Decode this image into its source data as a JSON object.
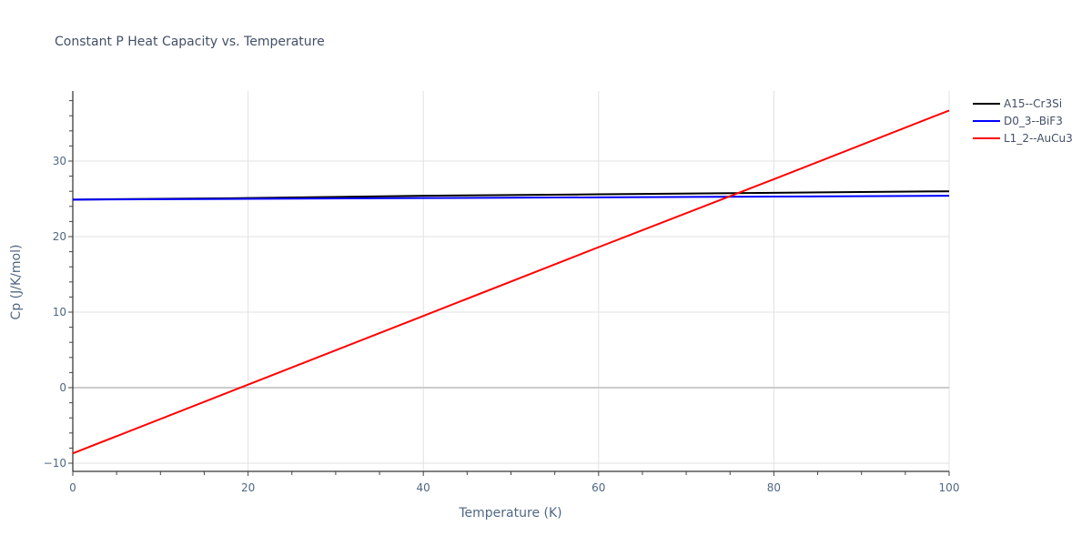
{
  "chart_data": {
    "type": "line",
    "title": "Constant P Heat Capacity vs. Temperature",
    "xlabel": "Temperature (K)",
    "ylabel": "Cp (J/K/mol)",
    "xlim": [
      0,
      100
    ],
    "ylim": [
      -11,
      39
    ],
    "xticks": [
      0,
      20,
      40,
      60,
      80,
      100
    ],
    "yticks": [
      -10,
      0,
      10,
      20,
      30
    ],
    "grid": true,
    "legend_position": "right",
    "x": [
      0,
      20,
      40,
      60,
      80,
      100
    ],
    "series": [
      {
        "name": "A15--Cr3Si",
        "color": "#000000",
        "values": [
          24.9,
          25.1,
          25.4,
          25.6,
          25.8,
          26.0
        ]
      },
      {
        "name": "D0_3--BiF3",
        "color": "#0000ff",
        "values": [
          24.9,
          25.0,
          25.1,
          25.2,
          25.3,
          25.4
        ]
      },
      {
        "name": "L1_2--AuCu3",
        "color": "#ff0000",
        "values": [
          -8.7,
          0.4,
          9.5,
          18.6,
          27.6,
          36.7
        ]
      }
    ]
  }
}
